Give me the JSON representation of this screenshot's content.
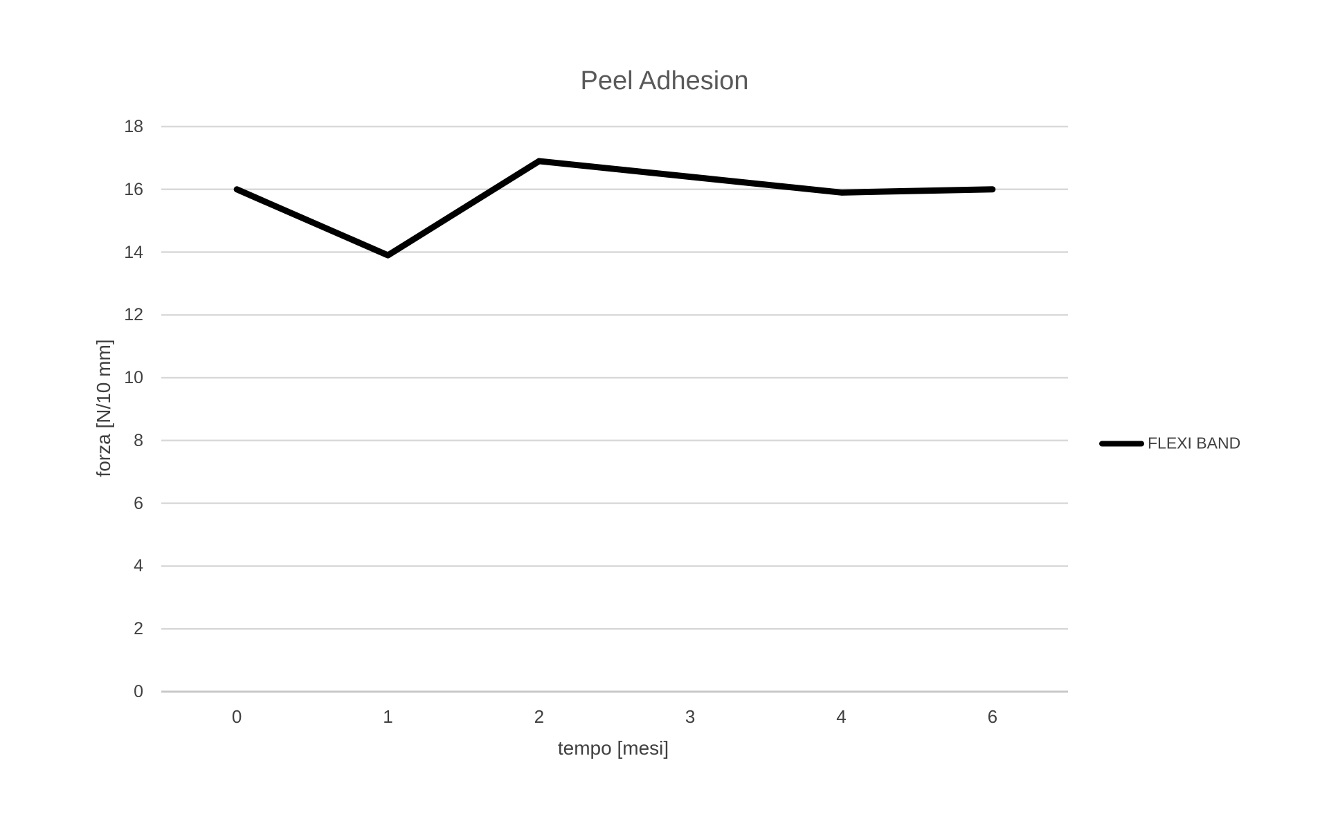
{
  "chart_data": {
    "type": "line",
    "title": "Peel Adhesion",
    "xlabel": "tempo [mesi]",
    "ylabel": "forza [N/10 mm]",
    "categories": [
      "0",
      "1",
      "2",
      "3",
      "4",
      "6"
    ],
    "series": [
      {
        "name": "FLEXI BAND",
        "color": "#000000",
        "values": [
          16,
          13.9,
          16.9,
          16.4,
          15.9,
          16
        ]
      }
    ],
    "ylim": [
      0,
      18
    ],
    "yticks": [
      0,
      2,
      4,
      6,
      8,
      10,
      12,
      14,
      16,
      18
    ],
    "grid": true,
    "legend_position": "right",
    "markers": false
  },
  "styles": {
    "background": "#FFFFFF",
    "gridline_color": "#D9D9D9",
    "axis_line_color": "#C9C9C9",
    "tick_label_color": "#404040",
    "axis_title_color": "#404040",
    "title_color": "#595959",
    "series_line_color": "#000000"
  }
}
